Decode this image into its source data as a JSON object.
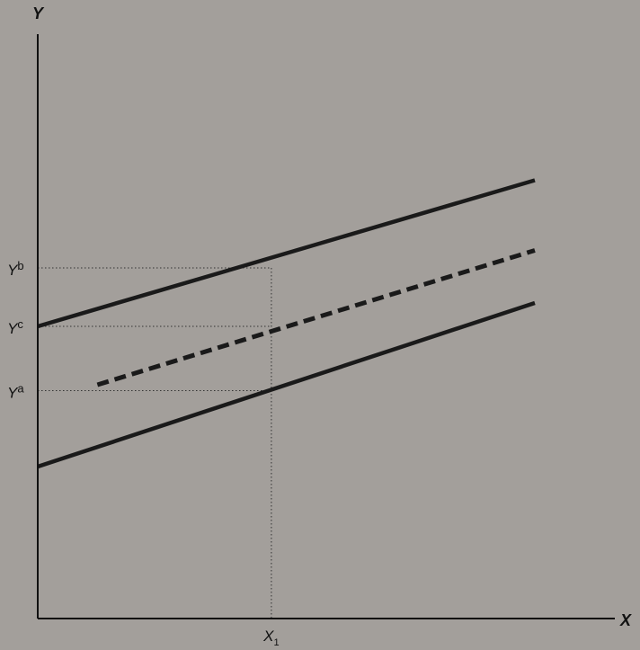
{
  "chart_data": {
    "type": "line",
    "x_axis": {
      "title": "X",
      "tick_label": "X",
      "tick_subscript": "1",
      "tick_value": 0.47
    },
    "y_axis": {
      "title": "Y",
      "ticks": [
        {
          "letter": "Y",
          "superscript": "b",
          "value": 0.6
        },
        {
          "letter": "Y",
          "superscript": "c",
          "value": 0.5
        },
        {
          "letter": "Y",
          "superscript": "a",
          "value": 0.39
        }
      ]
    },
    "xlim": [
      0,
      1
    ],
    "ylim": [
      0,
      1
    ],
    "series": [
      {
        "style": "solid",
        "x": [
          0,
          1.0
        ],
        "y": [
          0.5,
          0.75
        ]
      },
      {
        "style": "dashed",
        "x": [
          0.12,
          1.0
        ],
        "y": [
          0.4,
          0.63
        ]
      },
      {
        "style": "solid",
        "x": [
          0,
          1.0
        ],
        "y": [
          0.26,
          0.54
        ]
      }
    ],
    "guides": [
      {
        "from": "y_tick_b",
        "to_x": "x1"
      },
      {
        "from": "y_tick_c",
        "to_x": "x1"
      },
      {
        "from": "y_tick_a",
        "to_x": "x1"
      }
    ],
    "grid": false,
    "legend": "none",
    "colors": {
      "line": "#1a1a1a",
      "guide": "#333333",
      "background": "#a39f9b"
    }
  }
}
